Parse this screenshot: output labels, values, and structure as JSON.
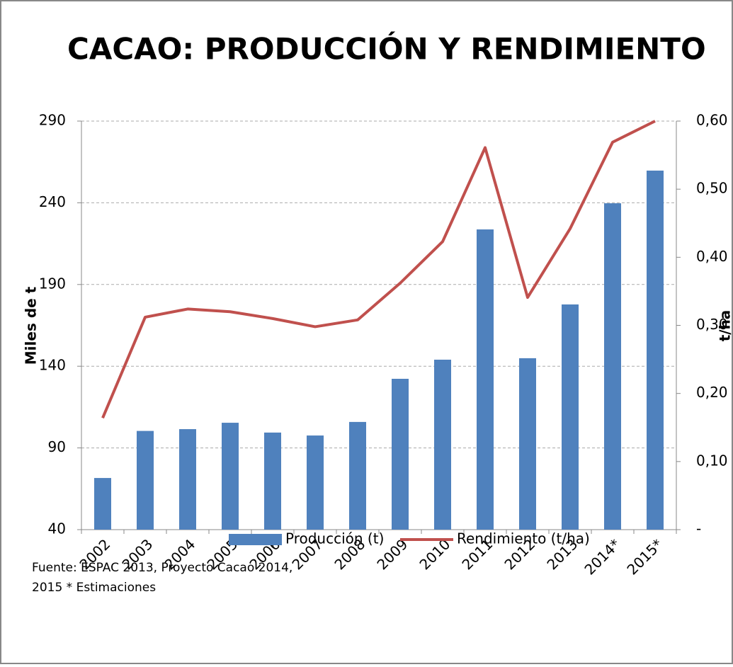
{
  "chart_data": {
    "type": "bar-line",
    "title": "CACAO: PRODUCCIÓN Y RENDIMIENTO",
    "ylabel": "Miles de t",
    "y2label": "t/ha",
    "categories": [
      "2002",
      "2003",
      "2004",
      "2005",
      "2006",
      "2007",
      "2008",
      "2009",
      "2010",
      "2011",
      "2012",
      "2013",
      "2014*",
      "2015*"
    ],
    "series": [
      {
        "name": "Producción (t)",
        "type": "bar",
        "color": "#4f81bd",
        "values": [
          71.6,
          100.4,
          101.5,
          105.4,
          99.4,
          97.6,
          105.9,
          132.3,
          144,
          223.7,
          144.9,
          177.8,
          239.7,
          259.7
        ]
      },
      {
        "name": "Rendimiento (t/ha)",
        "type": "line",
        "axis": "y2",
        "color": "#c0504d",
        "values": [
          0.164,
          0.312,
          0.324,
          0.32,
          0.31,
          0.298,
          0.308,
          0.362,
          0.423,
          0.561,
          0.341,
          0.442,
          0.569,
          0.6
        ]
      }
    ],
    "ylim": [
      40,
      290
    ],
    "yticks": [
      40,
      90,
      140,
      190,
      240,
      290
    ],
    "y2lim": [
      0,
      0.6
    ],
    "y2ticks": [
      {
        "value": 0,
        "label": "-"
      },
      {
        "value": 0.1,
        "label": "0,10"
      },
      {
        "value": 0.2,
        "label": "0,20"
      },
      {
        "value": 0.3,
        "label": "0,30"
      },
      {
        "value": 0.4,
        "label": "0,40"
      },
      {
        "value": 0.5,
        "label": "0,50"
      },
      {
        "value": 0.6,
        "label": "0,60"
      }
    ],
    "grid": true,
    "legend": "bottom",
    "source": [
      "Fuente: ESPAC 2013, Proyecto Cacao 2014,",
      "2015 * Estimaciones"
    ]
  }
}
